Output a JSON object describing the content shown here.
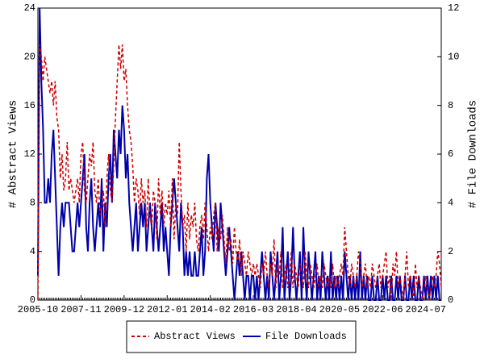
{
  "chart_data": {
    "type": "line",
    "categories": [
      "2005-10",
      null,
      null,
      null,
      null,
      null,
      null,
      null,
      null,
      null,
      null,
      null,
      null,
      null,
      null,
      null,
      null,
      null,
      null,
      null,
      null,
      null,
      null,
      null,
      null,
      "2007-11",
      null,
      null,
      null,
      null,
      null,
      null,
      null,
      null,
      null,
      null,
      null,
      null,
      null,
      null,
      null,
      null,
      null,
      null,
      null,
      null,
      null,
      null,
      null,
      null,
      "2009-12",
      null,
      null,
      null,
      null,
      null,
      null,
      null,
      null,
      null,
      null,
      null,
      null,
      null,
      null,
      null,
      null,
      null,
      null,
      null,
      null,
      null,
      null,
      null,
      null,
      "2012-01",
      null,
      null,
      null,
      null,
      null,
      null,
      null,
      null,
      null,
      null,
      null,
      null,
      null,
      null,
      null,
      null,
      null,
      null,
      null,
      null,
      null,
      null,
      null,
      null,
      "2014-02",
      null,
      null,
      null,
      null,
      null,
      null,
      null,
      null,
      null,
      null,
      null,
      null,
      null,
      null,
      null,
      null,
      null,
      null,
      null,
      null,
      null,
      null,
      null,
      null,
      "2016-03",
      null,
      null,
      null,
      null,
      null,
      null,
      null,
      null,
      null,
      null,
      null,
      null,
      null,
      null,
      null,
      null,
      null,
      null,
      null,
      null,
      null,
      null,
      null,
      null,
      "2018-04",
      null,
      null,
      null,
      null,
      null,
      null,
      null,
      null,
      null,
      null,
      null,
      null,
      null,
      null,
      null,
      null,
      null,
      null,
      null,
      null,
      null,
      null,
      null,
      null,
      "2020-05",
      null,
      null,
      null,
      null,
      null,
      null,
      null,
      null,
      null,
      null,
      null,
      null,
      null,
      null,
      null,
      null,
      null,
      null,
      null,
      null,
      null,
      null,
      null,
      null,
      "2022-06",
      null,
      null,
      null,
      null,
      null,
      null,
      null,
      null,
      null,
      null,
      null,
      null,
      null,
      null,
      null,
      null,
      null,
      null,
      null,
      null,
      null,
      null,
      null,
      null,
      "2024-07",
      null,
      null,
      null,
      null,
      null,
      null,
      null,
      null,
      null
    ],
    "series": [
      {
        "name": "Abstract Views",
        "color": "#cc0000",
        "dash": true,
        "values": [
          0,
          21,
          20,
          18,
          20,
          19,
          18,
          17,
          18,
          16,
          18,
          15,
          14,
          10,
          12,
          9,
          10,
          13,
          9,
          10,
          9,
          8,
          9,
          10,
          8,
          12,
          13,
          9,
          8,
          10,
          12,
          11,
          13,
          9,
          8,
          10,
          7,
          8,
          9,
          6,
          10,
          12,
          9,
          8,
          11,
          15,
          18,
          21,
          19,
          21,
          18,
          19,
          16,
          14,
          13,
          11,
          8,
          10,
          9,
          7,
          10,
          8,
          9,
          6,
          10,
          7,
          6,
          9,
          8,
          5,
          10,
          7,
          9,
          6,
          8,
          7,
          9,
          6,
          10,
          5,
          8,
          7,
          13,
          9,
          6,
          7,
          4,
          8,
          5,
          7,
          6,
          8,
          5,
          4,
          6,
          7,
          5,
          8,
          6,
          4,
          6,
          5,
          7,
          8,
          4,
          6,
          5,
          7,
          5,
          3,
          6,
          4,
          5,
          3,
          6,
          4,
          3,
          5,
          2,
          4,
          3,
          2,
          4,
          3,
          2,
          3,
          2,
          3,
          2,
          1,
          3,
          2,
          4,
          2,
          1,
          3,
          2,
          5,
          1,
          3,
          2,
          4,
          1,
          2,
          3,
          1,
          2,
          4,
          1,
          3,
          2,
          1,
          3,
          2,
          1,
          4,
          2,
          1,
          3,
          2,
          1,
          2,
          3,
          1,
          2,
          1,
          3,
          2,
          1,
          2,
          1,
          3,
          1,
          2,
          1,
          2,
          3,
          2,
          6,
          4,
          2,
          1,
          3,
          2,
          1,
          2,
          4,
          3,
          1,
          2,
          3,
          1,
          2,
          1,
          3,
          2,
          1,
          2,
          3,
          1,
          2,
          3,
          4,
          1,
          2,
          0,
          3,
          2,
          4,
          1,
          2,
          1,
          0,
          2,
          4,
          1,
          2,
          1,
          0,
          3,
          1,
          2,
          1,
          0,
          1,
          2,
          1,
          0,
          1,
          2,
          1,
          2,
          4,
          3,
          1
        ]
      },
      {
        "name": "File Downloads",
        "color": "#0000aa",
        "axis": "y2",
        "values": [
          1,
          12,
          9,
          7,
          4,
          4,
          5,
          4,
          6,
          7,
          5,
          3,
          1,
          3,
          4,
          3,
          4,
          4,
          4,
          3,
          2,
          2,
          3,
          4,
          3,
          4,
          5,
          6,
          3,
          2,
          4,
          5,
          3,
          2,
          3,
          4,
          3,
          5,
          2,
          4,
          3,
          5,
          6,
          4,
          7,
          6,
          5,
          7,
          6,
          8,
          7,
          5,
          6,
          4,
          3,
          2,
          3,
          4,
          2,
          3,
          4,
          3,
          4,
          2,
          3,
          4,
          3,
          2,
          4,
          3,
          2,
          3,
          4,
          2,
          3,
          2,
          1,
          3,
          4,
          5,
          4,
          3,
          2,
          4,
          3,
          1,
          2,
          1,
          2,
          1,
          1,
          2,
          1,
          1,
          2,
          3,
          1,
          2,
          5,
          6,
          4,
          3,
          2,
          4,
          3,
          2,
          4,
          3,
          2,
          1,
          2,
          3,
          2,
          1,
          0,
          1,
          2,
          1,
          2,
          1,
          0,
          1,
          1,
          0,
          1,
          1,
          0,
          1,
          0,
          1,
          2,
          1,
          0,
          1,
          0,
          2,
          1,
          0,
          1,
          2,
          0,
          1,
          3,
          0,
          1,
          2,
          0,
          1,
          3,
          1,
          0,
          1,
          2,
          0,
          3,
          1,
          0,
          2,
          1,
          0,
          1,
          2,
          0,
          1,
          0,
          2,
          1,
          0,
          1,
          0,
          2,
          0,
          1,
          0,
          1,
          0,
          1,
          0,
          2,
          1,
          0,
          1,
          0,
          1,
          0,
          1,
          0,
          2,
          0,
          1,
          0,
          1,
          0,
          0,
          1,
          0,
          0,
          1,
          0,
          0,
          1,
          0,
          1,
          0,
          0,
          1,
          0,
          0,
          1,
          0,
          1,
          0,
          0,
          1,
          0,
          0,
          1,
          0,
          1,
          0,
          0,
          1,
          0,
          0,
          1,
          0,
          1,
          0,
          1,
          0,
          1,
          0,
          1,
          0,
          0
        ]
      }
    ],
    "ylabel": "# Abstract Views",
    "y2label": "# File Downloads",
    "ylim": [
      0,
      24
    ],
    "yticks": [
      0,
      4,
      8,
      12,
      16,
      20,
      24
    ],
    "y2lim": [
      0,
      12
    ],
    "y2ticks": [
      0,
      2,
      4,
      6,
      8,
      10,
      12
    ],
    "legend": "bottom"
  }
}
